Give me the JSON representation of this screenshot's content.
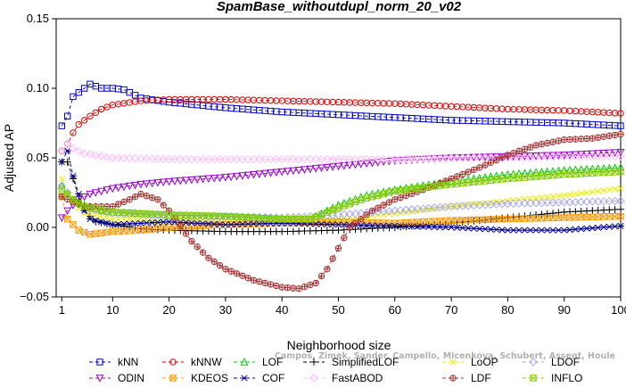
{
  "chart_data": {
    "type": "line",
    "title": "SpamBase_withoutdupl_norm_20_v02",
    "xlabel": "Neighborhood size",
    "ylabel": "Adjusted AP",
    "xlim": [
      0,
      100
    ],
    "ylim": [
      -0.05,
      0.15
    ],
    "xticks": [
      1,
      10,
      20,
      30,
      40,
      50,
      60,
      70,
      80,
      90,
      100
    ],
    "yticks": [
      -0.05,
      0.0,
      0.05,
      0.1,
      0.15
    ],
    "ytick_labels": [
      "−0.05",
      "0.00",
      "0.05",
      "0.10",
      "0.15"
    ],
    "grid": false,
    "legend_position": "bottom",
    "series": [
      {
        "name": "kNN",
        "color": "#0000cc",
        "marker": "square",
        "dash": "4,3",
        "points": [
          [
            1,
            0.073
          ],
          [
            2,
            0.08
          ],
          [
            3,
            0.094
          ],
          [
            4,
            0.097
          ],
          [
            5,
            0.1
          ],
          [
            6,
            0.103
          ],
          [
            8,
            0.1
          ],
          [
            10,
            0.1
          ],
          [
            12,
            0.099
          ],
          [
            15,
            0.093
          ],
          [
            20,
            0.09
          ],
          [
            30,
            0.086
          ],
          [
            40,
            0.083
          ],
          [
            50,
            0.081
          ],
          [
            60,
            0.079
          ],
          [
            70,
            0.077
          ],
          [
            80,
            0.076
          ],
          [
            90,
            0.075
          ],
          [
            100,
            0.073
          ]
        ]
      },
      {
        "name": "kNNW",
        "color": "#dd0000",
        "marker": "circle",
        "dash": "4,3",
        "points": [
          [
            1,
            0.055
          ],
          [
            2,
            0.06
          ],
          [
            3,
            0.068
          ],
          [
            4,
            0.074
          ],
          [
            6,
            0.08
          ],
          [
            8,
            0.085
          ],
          [
            10,
            0.088
          ],
          [
            15,
            0.091
          ],
          [
            20,
            0.092
          ],
          [
            30,
            0.092
          ],
          [
            40,
            0.091
          ],
          [
            50,
            0.09
          ],
          [
            60,
            0.089
          ],
          [
            70,
            0.087
          ],
          [
            80,
            0.085
          ],
          [
            90,
            0.084
          ],
          [
            100,
            0.082
          ]
        ]
      },
      {
        "name": "LOF",
        "color": "#00cc00",
        "marker": "triangle-up",
        "dash": "4,3",
        "points": [
          [
            1,
            0.03
          ],
          [
            2,
            0.024
          ],
          [
            3,
            0.02
          ],
          [
            5,
            0.016
          ],
          [
            8,
            0.012
          ],
          [
            10,
            0.011
          ],
          [
            20,
            0.009
          ],
          [
            30,
            0.008
          ],
          [
            40,
            0.006
          ],
          [
            45,
            0.006
          ],
          [
            50,
            0.016
          ],
          [
            55,
            0.023
          ],
          [
            60,
            0.027
          ],
          [
            70,
            0.033
          ],
          [
            80,
            0.038
          ],
          [
            90,
            0.041
          ],
          [
            100,
            0.043
          ]
        ]
      },
      {
        "name": "SimplifiedLOF",
        "color": "#000000",
        "marker": "plus",
        "dash": "4,3",
        "points": [
          [
            1,
            0.047
          ],
          [
            2,
            0.047
          ],
          [
            3,
            0.035
          ],
          [
            4,
            0.022
          ],
          [
            5,
            0.012
          ],
          [
            7,
            0.004
          ],
          [
            10,
            0.002
          ],
          [
            15,
            -0.001
          ],
          [
            20,
            -0.002
          ],
          [
            30,
            -0.003
          ],
          [
            40,
            -0.003
          ],
          [
            50,
            -0.002
          ],
          [
            60,
            0.0
          ],
          [
            70,
            0.003
          ],
          [
            80,
            0.007
          ],
          [
            90,
            0.011
          ],
          [
            100,
            0.013
          ]
        ]
      },
      {
        "name": "LoOP",
        "color": "#eeee00",
        "marker": "cross",
        "dash": "4,3",
        "points": [
          [
            1,
            0.035
          ],
          [
            2,
            0.025
          ],
          [
            3,
            0.018
          ],
          [
            5,
            0.01
          ],
          [
            10,
            0.006
          ],
          [
            20,
            0.004
          ],
          [
            30,
            0.005
          ],
          [
            40,
            0.004
          ],
          [
            50,
            0.006
          ],
          [
            60,
            0.01
          ],
          [
            70,
            0.015
          ],
          [
            80,
            0.019
          ],
          [
            90,
            0.023
          ],
          [
            100,
            0.028
          ]
        ]
      },
      {
        "name": "LDOF",
        "color": "#aaaaee",
        "marker": "diamond",
        "dash": "4,3",
        "points": [
          [
            1,
            0.03
          ],
          [
            3,
            0.02
          ],
          [
            5,
            0.014
          ],
          [
            10,
            0.01
          ],
          [
            20,
            0.008
          ],
          [
            30,
            0.008
          ],
          [
            40,
            0.007
          ],
          [
            50,
            0.009
          ],
          [
            60,
            0.012
          ],
          [
            70,
            0.015
          ],
          [
            80,
            0.017
          ],
          [
            90,
            0.018
          ],
          [
            100,
            0.019
          ]
        ]
      },
      {
        "name": "ODIN",
        "color": "#9900cc",
        "marker": "triangle-down",
        "dash": "4,3",
        "points": [
          [
            1,
            0.007
          ],
          [
            2,
            0.012
          ],
          [
            3,
            0.016
          ],
          [
            4,
            0.02
          ],
          [
            6,
            0.024
          ],
          [
            10,
            0.028
          ],
          [
            15,
            0.031
          ],
          [
            20,
            0.033
          ],
          [
            30,
            0.036
          ],
          [
            40,
            0.04
          ],
          [
            50,
            0.044
          ],
          [
            60,
            0.048
          ],
          [
            70,
            0.05
          ],
          [
            80,
            0.051
          ],
          [
            90,
            0.052
          ],
          [
            100,
            0.054
          ]
        ]
      },
      {
        "name": "KDEOS",
        "color": "#ff9900",
        "marker": "square-x",
        "dash": "4,3",
        "points": [
          [
            1,
            0.022
          ],
          [
            2,
            0.006
          ],
          [
            4,
            -0.002
          ],
          [
            6,
            -0.005
          ],
          [
            10,
            -0.003
          ],
          [
            15,
            -0.002
          ],
          [
            20,
            0.0
          ],
          [
            30,
            0.002
          ],
          [
            40,
            0.003
          ],
          [
            50,
            0.004
          ],
          [
            60,
            0.003
          ],
          [
            70,
            0.005
          ],
          [
            80,
            0.006
          ],
          [
            90,
            0.007
          ],
          [
            100,
            0.008
          ]
        ]
      },
      {
        "name": "COF",
        "color": "#000099",
        "marker": "asterisk",
        "dash": "4,3",
        "points": [
          [
            1,
            0.047
          ],
          [
            2,
            0.055
          ],
          [
            3,
            0.037
          ],
          [
            4,
            0.024
          ],
          [
            5,
            0.012
          ],
          [
            6,
            0.006
          ],
          [
            10,
            0.002
          ],
          [
            20,
            0.004
          ],
          [
            30,
            0.002
          ],
          [
            40,
            0.003
          ],
          [
            50,
            0.002
          ],
          [
            60,
            0.001
          ],
          [
            70,
            0.0
          ],
          [
            80,
            -0.002
          ],
          [
            90,
            -0.002
          ],
          [
            100,
            0.001
          ]
        ]
      },
      {
        "name": "FastABOD",
        "color": "#ffbbff",
        "marker": "diamond",
        "dash": "4,3",
        "points": [
          [
            1,
            0.055
          ],
          [
            2,
            0.06
          ],
          [
            3,
            0.057
          ],
          [
            5,
            0.053
          ],
          [
            10,
            0.05
          ],
          [
            20,
            0.049
          ],
          [
            30,
            0.049
          ],
          [
            40,
            0.049
          ],
          [
            50,
            0.049
          ],
          [
            60,
            0.049
          ],
          [
            70,
            0.05
          ],
          [
            80,
            0.05
          ],
          [
            90,
            0.051
          ],
          [
            100,
            0.051
          ]
        ]
      },
      {
        "name": "LDF",
        "color": "#aa3333",
        "marker": "circle-plus",
        "dash": "4,3",
        "points": [
          [
            1,
            0.022
          ],
          [
            5,
            0.015
          ],
          [
            10,
            0.015
          ],
          [
            13,
            0.02
          ],
          [
            15,
            0.024
          ],
          [
            18,
            0.02
          ],
          [
            20,
            0.012
          ],
          [
            24,
            -0.01
          ],
          [
            27,
            -0.022
          ],
          [
            30,
            -0.03
          ],
          [
            35,
            -0.038
          ],
          [
            40,
            -0.043
          ],
          [
            43,
            -0.044
          ],
          [
            46,
            -0.04
          ],
          [
            48,
            -0.03
          ],
          [
            50,
            -0.015
          ],
          [
            52,
            0.0
          ],
          [
            56,
            0.012
          ],
          [
            60,
            0.02
          ],
          [
            65,
            0.027
          ],
          [
            70,
            0.035
          ],
          [
            75,
            0.043
          ],
          [
            80,
            0.052
          ],
          [
            85,
            0.059
          ],
          [
            90,
            0.063
          ],
          [
            95,
            0.064
          ],
          [
            100,
            0.067
          ]
        ]
      },
      {
        "name": "INFLO",
        "color": "#88cc00",
        "marker": "square-x",
        "dash": "4,3",
        "points": [
          [
            1,
            0.027
          ],
          [
            3,
            0.02
          ],
          [
            5,
            0.015
          ],
          [
            10,
            0.011
          ],
          [
            20,
            0.009
          ],
          [
            30,
            0.008
          ],
          [
            40,
            0.006
          ],
          [
            45,
            0.006
          ],
          [
            50,
            0.014
          ],
          [
            55,
            0.021
          ],
          [
            60,
            0.026
          ],
          [
            70,
            0.031
          ],
          [
            80,
            0.035
          ],
          [
            90,
            0.038
          ],
          [
            100,
            0.04
          ]
        ]
      }
    ]
  },
  "watermark": "Campos, Zimek, Sander, Campello, Micenkova, Schubert, Assent, Houle"
}
